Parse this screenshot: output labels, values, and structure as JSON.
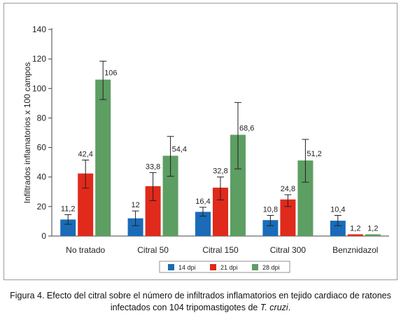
{
  "chart_data": {
    "type": "bar",
    "ylabel": "Infiltrados inflamatorios x 100 campos",
    "xlabel": "",
    "ylim": [
      0,
      140
    ],
    "yticks": [
      0,
      20,
      40,
      60,
      80,
      100,
      120,
      140
    ],
    "grid": false,
    "legend_position": "bottom",
    "categories": [
      "No tratado",
      "Citral 50",
      "Citral 150",
      "Citral 300",
      "Benznidazol"
    ],
    "series": [
      {
        "name": "14 dpi",
        "color": "#1a6bb8",
        "values": [
          11.2,
          12,
          16.4,
          10.8,
          10.4
        ],
        "labels": [
          "11,2",
          "12",
          "16,4",
          "10,8",
          "10,4"
        ],
        "err_low": [
          8,
          7,
          13.5,
          7,
          7
        ],
        "err_high": [
          14.5,
          17,
          19.5,
          14,
          14
        ]
      },
      {
        "name": "21 dpi",
        "color": "#e02a1b",
        "values": [
          42.4,
          33.8,
          32.8,
          24.8,
          1.2
        ],
        "labels": [
          "42,4",
          "33,8",
          "32,8",
          "24,8",
          "1,2"
        ],
        "err_low": [
          32.5,
          24,
          24.5,
          20,
          1.2
        ],
        "err_high": [
          51.5,
          43,
          40,
          28,
          1.2
        ]
      },
      {
        "name": "28 dpi",
        "color": "#5d9e63",
        "values": [
          106,
          54.4,
          68.6,
          51.2,
          1.2
        ],
        "labels": [
          "106",
          "54,4",
          "68,6",
          "51,2",
          "1,2"
        ],
        "err_low": [
          92.5,
          40.5,
          45.5,
          36.5,
          1.2
        ],
        "err_high": [
          118.5,
          67.5,
          90.5,
          65.5,
          1.2
        ]
      }
    ]
  },
  "caption": {
    "line1": "Figura 4. Efecto del citral sobre el número de infiltrados inflamatorios en tejido cardiaco de ratones",
    "line2_prefix": "infectados con 104 tripomastigotes de ",
    "line2_italic": "T. cruzi",
    "line2_suffix": "."
  }
}
